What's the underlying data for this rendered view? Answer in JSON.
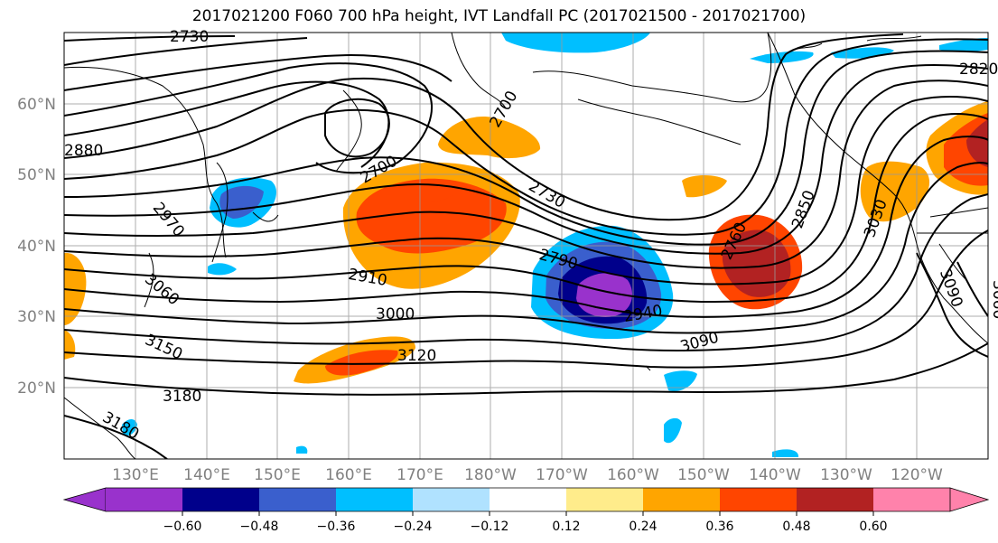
{
  "title": "2017021200 F060 700 hPa height, IVT Landfall PC (2017021500 - 2017021700)",
  "map": {
    "lat_labels": [
      "60°N",
      "50°N",
      "40°N",
      "30°N",
      "20°N"
    ],
    "lon_labels": [
      "130°E",
      "140°E",
      "150°E",
      "160°E",
      "170°E",
      "180°W",
      "170°W",
      "160°W",
      "150°W",
      "140°W",
      "130°W",
      "120°W"
    ],
    "contour_labels": [
      "2730",
      "2700",
      "2700",
      "2730",
      "2760",
      "2790",
      "2850",
      "2820",
      "2880",
      "2970",
      "3060",
      "2910",
      "3000",
      "2940",
      "3030",
      "3090",
      "3120",
      "3150",
      "3180",
      "3180",
      "3090",
      "3060"
    ]
  },
  "colorbar": {
    "ticks": [
      "−0.60",
      "−0.48",
      "−0.36",
      "−0.24",
      "−0.12",
      "0.12",
      "0.24",
      "0.36",
      "0.48",
      "0.60"
    ],
    "colors": [
      "#9932CC",
      "#00008B",
      "#3A5FCD",
      "#00BFFF",
      "#B0E2FF",
      "#FFFFFF",
      "#FFEC8B",
      "#FFA500",
      "#FF4500",
      "#B22222",
      "#FF82AB"
    ]
  }
}
